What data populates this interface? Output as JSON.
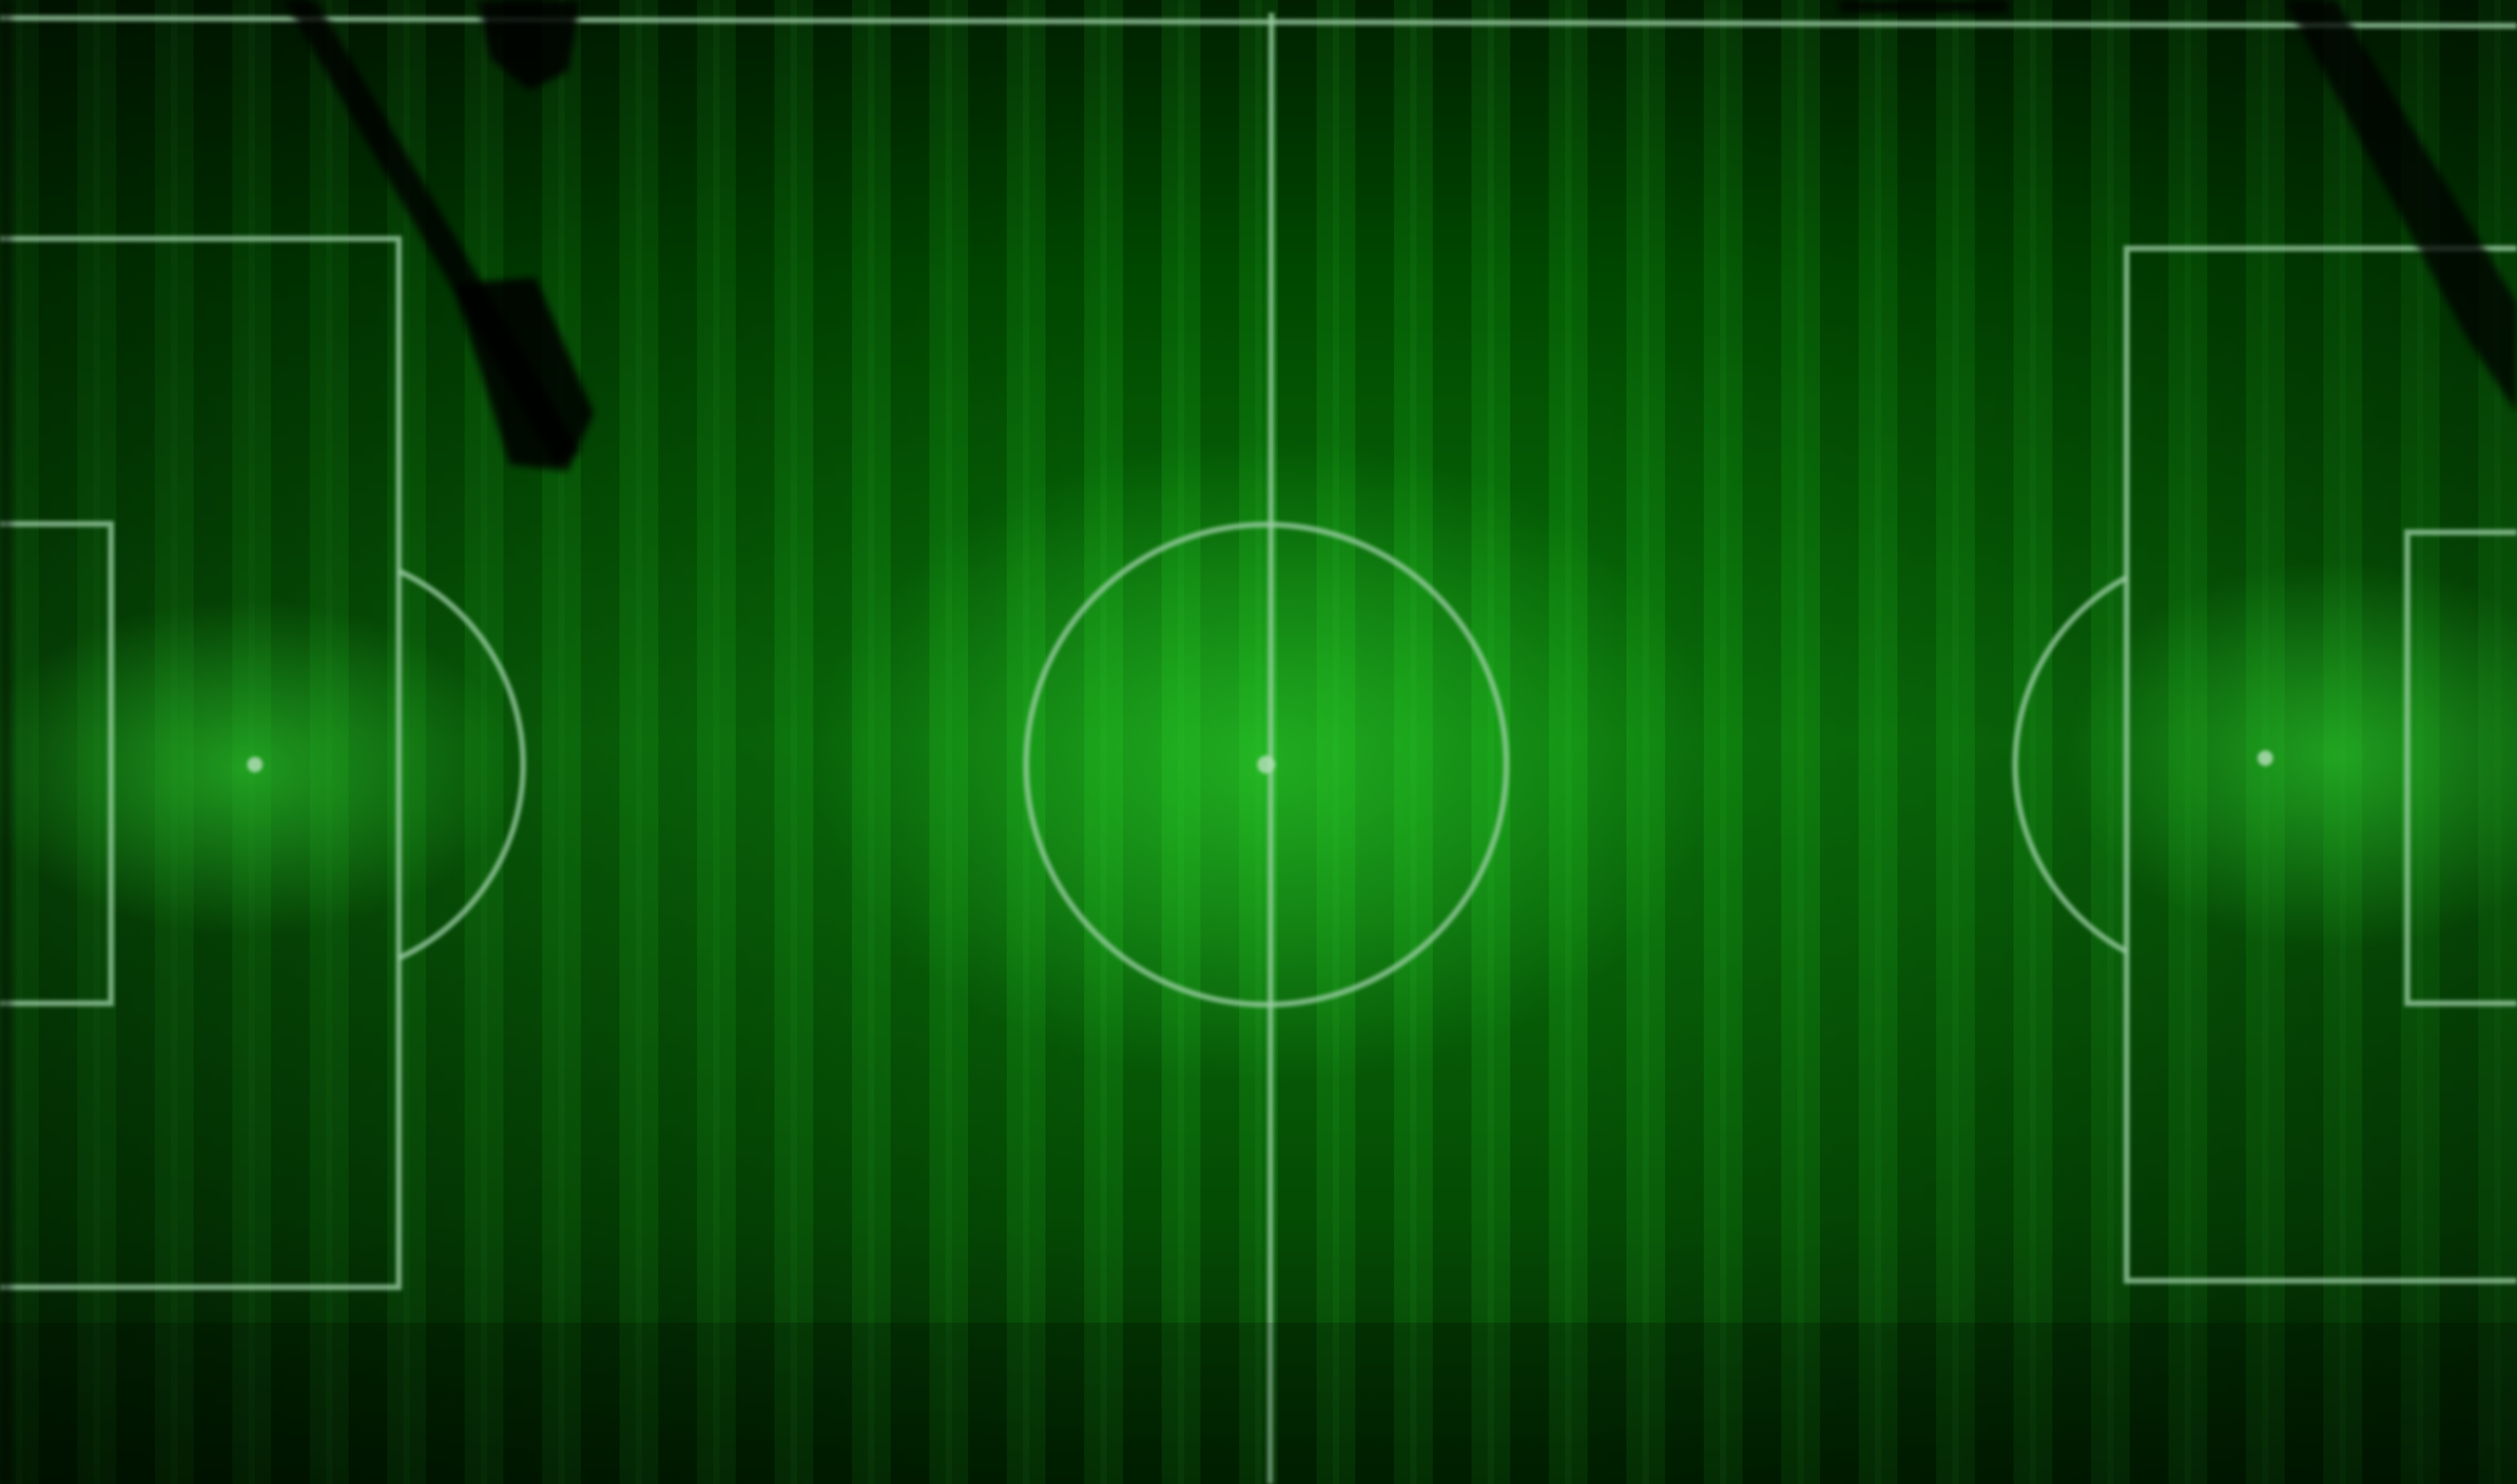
{
  "scene": {
    "subject": "",
    "colors": {
      "grass_dark": "#001a00",
      "grass_mid": "#0a6a0a",
      "grass_bright": "#1bb51b",
      "lines": "#9fd0a8",
      "shadow": "#000000"
    }
  }
}
